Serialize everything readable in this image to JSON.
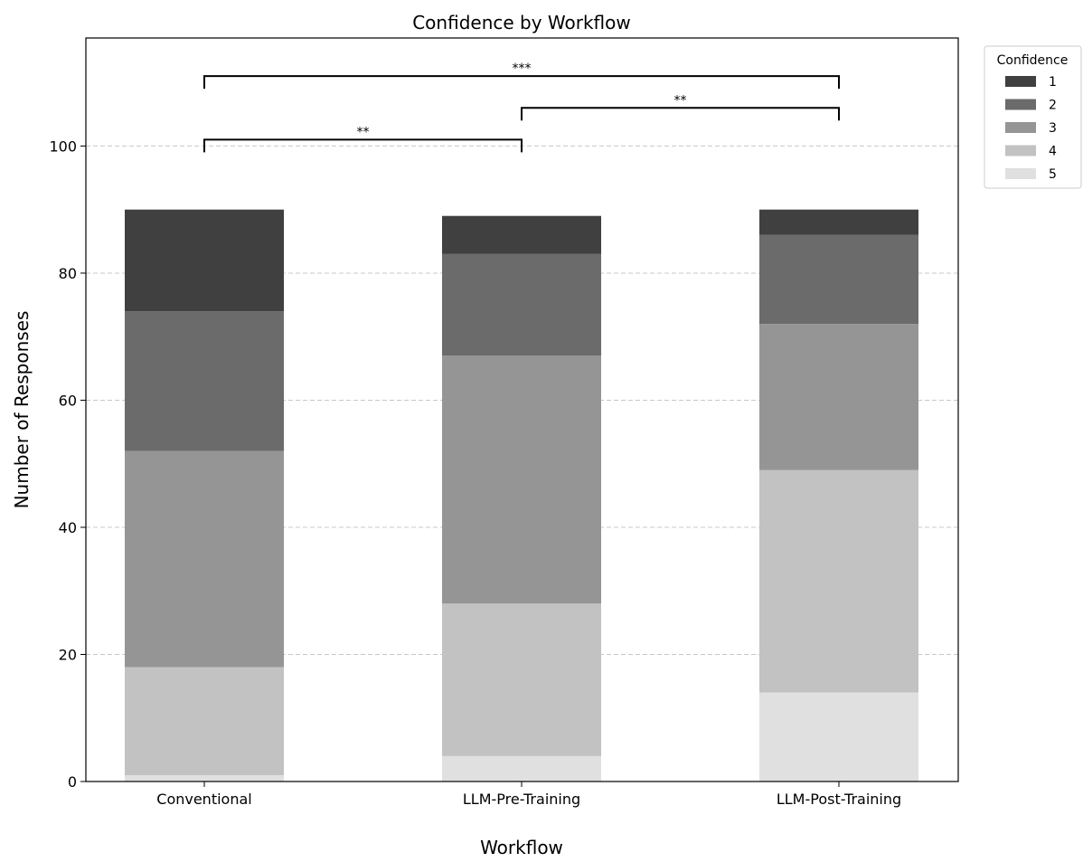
{
  "chart_data": {
    "type": "bar",
    "stacked": true,
    "title": "Confidence by Workflow",
    "xlabel": "Workflow",
    "ylabel": "Number of Responses",
    "categories": [
      "Conventional",
      "LLM-Pre-Training",
      "LLM-Post-Training"
    ],
    "ylim": [
      0,
      117
    ],
    "yticks": [
      0,
      20,
      40,
      60,
      80,
      100
    ],
    "grid": "horizontal dashed",
    "legend": {
      "title": "Confidence",
      "placement": "outside top-right"
    },
    "series": [
      {
        "name": "5",
        "color": "#e0e0e0",
        "values": [
          1,
          4,
          14
        ]
      },
      {
        "name": "4",
        "color": "#c2c2c2",
        "values": [
          17,
          24,
          35
        ]
      },
      {
        "name": "3",
        "color": "#959595",
        "values": [
          34,
          39,
          23
        ]
      },
      {
        "name": "2",
        "color": "#6b6b6b",
        "values": [
          22,
          16,
          14
        ]
      },
      {
        "name": "1",
        "color": "#404040",
        "values": [
          16,
          6,
          4
        ]
      }
    ],
    "legend_order": [
      "1",
      "2",
      "3",
      "4",
      "5"
    ],
    "annotations": [
      {
        "from": "Conventional",
        "to": "LLM-Pre-Training",
        "y": 101,
        "label": "**"
      },
      {
        "from": "Conventional",
        "to": "LLM-Post-Training",
        "y": 111,
        "label": "***"
      },
      {
        "from": "LLM-Pre-Training",
        "to": "LLM-Post-Training",
        "y": 106,
        "label": "**"
      }
    ]
  }
}
